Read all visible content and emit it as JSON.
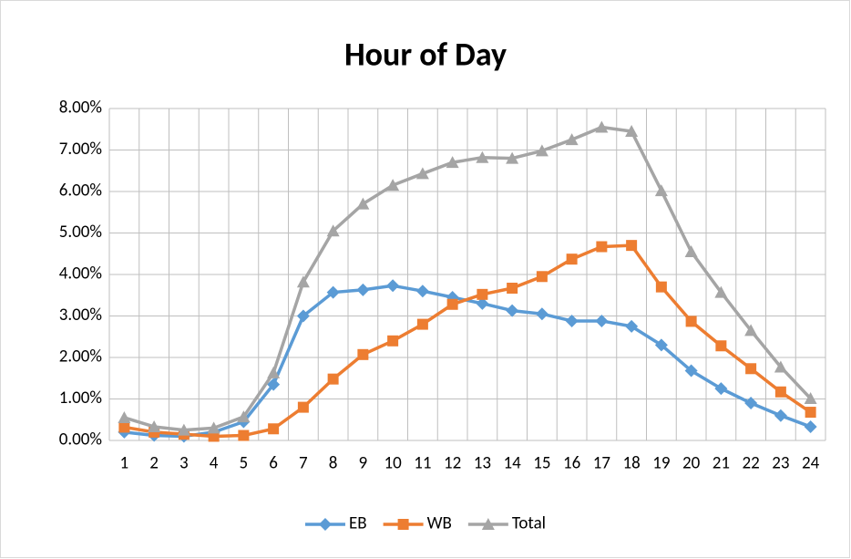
{
  "chart_data": {
    "type": "line",
    "title": "Hour of Day",
    "categories": [
      "1",
      "2",
      "3",
      "4",
      "5",
      "6",
      "7",
      "8",
      "9",
      "10",
      "11",
      "12",
      "13",
      "14",
      "15",
      "16",
      "17",
      "18",
      "19",
      "20",
      "21",
      "22",
      "23",
      "24"
    ],
    "series": [
      {
        "name": "EB",
        "color": "#5b9bd5",
        "marker": "diamond",
        "values": [
          0.2,
          0.12,
          0.1,
          0.2,
          0.45,
          1.35,
          3.0,
          3.57,
          3.63,
          3.73,
          3.6,
          3.45,
          3.3,
          3.13,
          3.05,
          2.88,
          2.88,
          2.75,
          2.3,
          1.68,
          1.25,
          0.9,
          0.6,
          0.33
        ]
      },
      {
        "name": "WB",
        "color": "#ed7d31",
        "marker": "square",
        "values": [
          0.32,
          0.2,
          0.15,
          0.1,
          0.12,
          0.28,
          0.8,
          1.48,
          2.07,
          2.4,
          2.8,
          3.28,
          3.52,
          3.67,
          3.95,
          4.37,
          4.67,
          4.7,
          3.7,
          2.87,
          2.28,
          1.73,
          1.17,
          0.68
        ]
      },
      {
        "name": "Total",
        "color": "#a5a5a5",
        "marker": "triangle",
        "values": [
          0.55,
          0.33,
          0.25,
          0.3,
          0.57,
          1.63,
          3.82,
          5.05,
          5.7,
          6.15,
          6.43,
          6.7,
          6.82,
          6.8,
          6.98,
          7.25,
          7.55,
          7.45,
          6.02,
          4.55,
          3.57,
          2.65,
          1.77,
          1.01
        ]
      }
    ],
    "ylim": [
      0,
      8
    ],
    "yticks": [
      {
        "value": 0,
        "label": "0.00%"
      },
      {
        "value": 1,
        "label": "1.00%"
      },
      {
        "value": 2,
        "label": "2.00%"
      },
      {
        "value": 3,
        "label": "3.00%"
      },
      {
        "value": 4,
        "label": "4.00%"
      },
      {
        "value": 5,
        "label": "5.00%"
      },
      {
        "value": 6,
        "label": "6.00%"
      },
      {
        "value": 7,
        "label": "7.00%"
      },
      {
        "value": 8,
        "label": "8.00%"
      }
    ],
    "grid": true,
    "legend": "bottom"
  }
}
